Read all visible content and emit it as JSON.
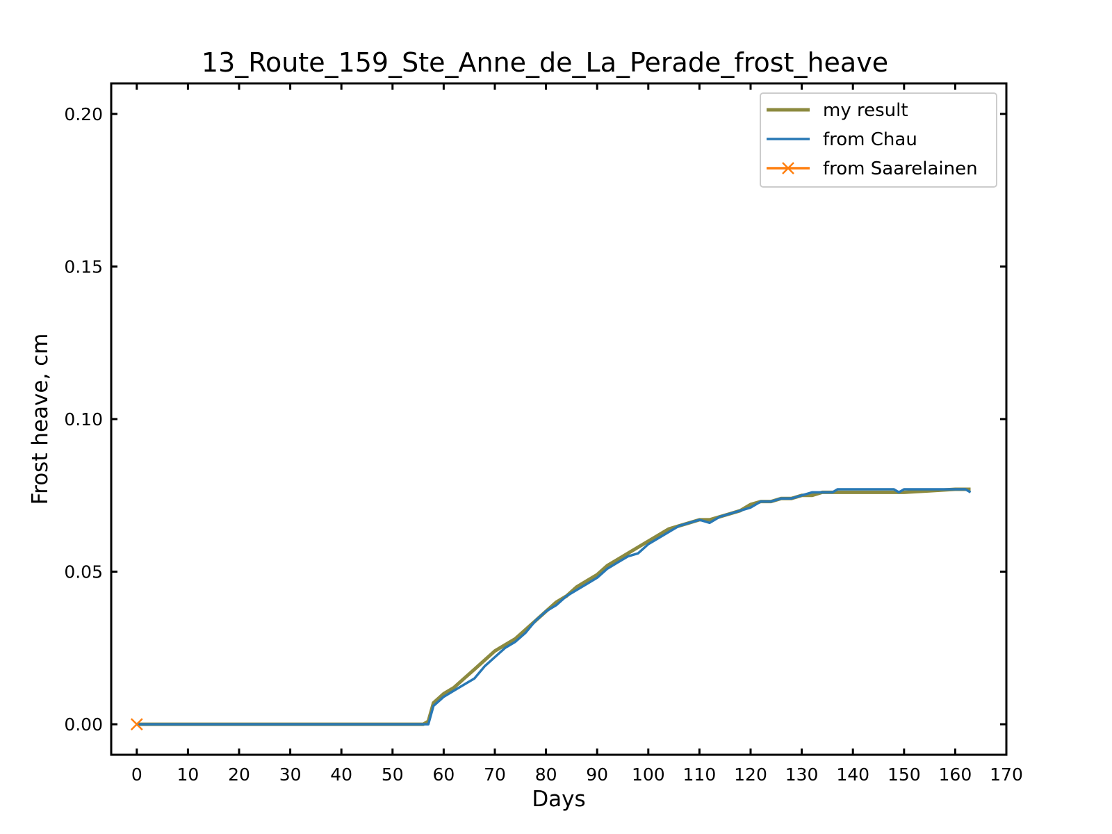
{
  "chart_data": {
    "type": "line",
    "title": "13_Route_159_Ste_Anne_de_La_Perade_frost_heave",
    "xlabel": "Days",
    "ylabel": "Frost heave, cm",
    "xlim": [
      -5,
      170
    ],
    "ylim": [
      -0.01,
      0.21
    ],
    "xticks": [
      0,
      10,
      20,
      30,
      40,
      50,
      60,
      70,
      80,
      90,
      100,
      110,
      120,
      130,
      140,
      150,
      160,
      170
    ],
    "xtick_labels": [
      "0",
      "10",
      "20",
      "30",
      "40",
      "50",
      "60",
      "70",
      "80",
      "90",
      "100",
      "110",
      "120",
      "130",
      "140",
      "150",
      "160",
      "170"
    ],
    "yticks": [
      0.0,
      0.05,
      0.1,
      0.15,
      0.2
    ],
    "ytick_labels": [
      "0.00",
      "0.05",
      "0.10",
      "0.15",
      "0.20"
    ],
    "grid": false,
    "legend_position": "top-right",
    "series": [
      {
        "name": "my result",
        "color": "#8c8a3f",
        "marker": "none",
        "x": [
          0,
          56,
          57,
          58,
          60,
          62,
          64,
          66,
          68,
          70,
          72,
          74,
          76,
          78,
          80,
          82,
          84,
          86,
          88,
          90,
          92,
          94,
          96,
          98,
          100,
          102,
          104,
          106,
          108,
          110,
          112,
          114,
          116,
          118,
          120,
          122,
          124,
          126,
          128,
          130,
          132,
          134,
          136,
          138,
          140,
          145,
          150,
          155,
          160,
          163
        ],
        "y": [
          0,
          0,
          0.001,
          0.007,
          0.01,
          0.012,
          0.015,
          0.018,
          0.021,
          0.024,
          0.026,
          0.028,
          0.031,
          0.034,
          0.037,
          0.04,
          0.042,
          0.045,
          0.047,
          0.049,
          0.052,
          0.054,
          0.056,
          0.058,
          0.06,
          0.062,
          0.064,
          0.065,
          0.066,
          0.067,
          0.067,
          0.068,
          0.069,
          0.07,
          0.072,
          0.073,
          0.073,
          0.074,
          0.074,
          0.075,
          0.075,
          0.076,
          0.076,
          0.076,
          0.076,
          0.076,
          0.076,
          0.0765,
          0.077,
          0.077
        ]
      },
      {
        "name": "from Chau",
        "color": "#2878b5",
        "marker": "none",
        "x": [
          0,
          57,
          58,
          60,
          62,
          64,
          66,
          68,
          70,
          72,
          74,
          76,
          78,
          80,
          82,
          84,
          86,
          88,
          90,
          92,
          94,
          96,
          98,
          100,
          102,
          104,
          106,
          108,
          110,
          112,
          114,
          116,
          118,
          120,
          122,
          124,
          126,
          128,
          130,
          132,
          134,
          136,
          137,
          140,
          145,
          148,
          149,
          150,
          155,
          160,
          162,
          163
        ],
        "y": [
          0,
          0,
          0.006,
          0.009,
          0.011,
          0.013,
          0.015,
          0.019,
          0.022,
          0.025,
          0.027,
          0.03,
          0.034,
          0.037,
          0.039,
          0.042,
          0.044,
          0.046,
          0.048,
          0.051,
          0.053,
          0.055,
          0.056,
          0.059,
          0.061,
          0.063,
          0.065,
          0.066,
          0.067,
          0.066,
          0.068,
          0.069,
          0.07,
          0.071,
          0.073,
          0.073,
          0.074,
          0.074,
          0.075,
          0.076,
          0.076,
          0.076,
          0.077,
          0.077,
          0.077,
          0.077,
          0.076,
          0.077,
          0.077,
          0.077,
          0.077,
          0.076
        ]
      },
      {
        "name": "from Saarelainen",
        "color": "#ff7f0e",
        "marker": "x",
        "x": [
          0
        ],
        "y": [
          0
        ]
      }
    ]
  }
}
